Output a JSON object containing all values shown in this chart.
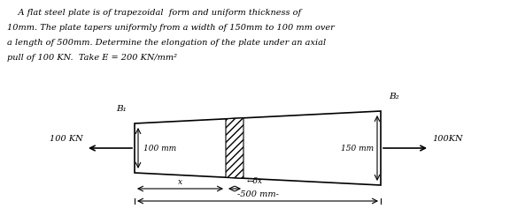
{
  "bg_color": "#ffffff",
  "text_color": "#000000",
  "title_lines": [
    "    A flat steel plate is of trapezoidal  form and uniform thickness of",
    "10mm. The plate tapers uniformly from a width of 150mm to 100 mm over",
    "a length of 500mm. Determine the elongation of the plate under an axial",
    "pull of 100 KN.  Take E = 200 KN/mm²"
  ],
  "B1_label": "B₁",
  "B2_label": "B₂",
  "label_100mm": "100 mm",
  "label_150mm": "150 mm",
  "label_100KN_left": "100 KN",
  "label_100KN_right": "100KN",
  "label_x": "x",
  "label_dx": "−δx",
  "label_500mm": "-500 mm-"
}
